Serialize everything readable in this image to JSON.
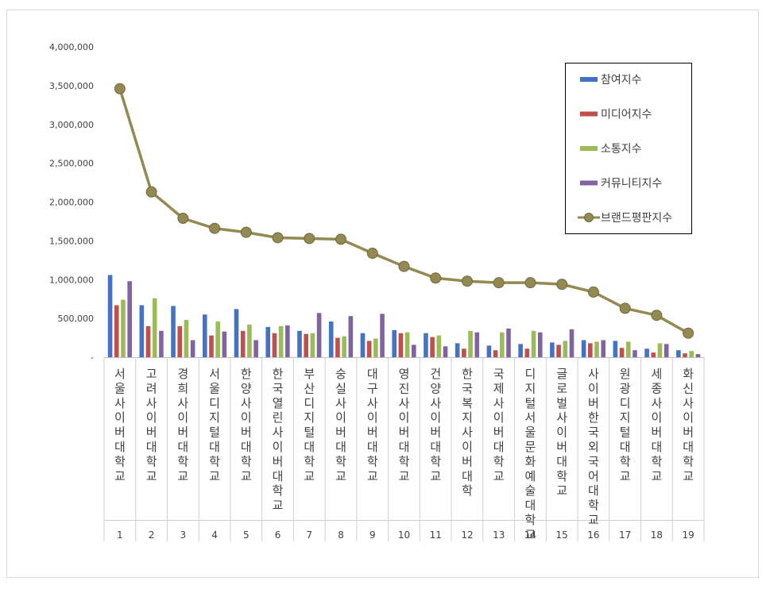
{
  "chart_data": {
    "type": "bar",
    "categories": [
      {
        "name": "서울사이버대학교",
        "rank": "1"
      },
      {
        "name": "고려사이버대학교",
        "rank": "2"
      },
      {
        "name": "경희사이버대학교",
        "rank": "3"
      },
      {
        "name": "서울디지털대학교",
        "rank": "4"
      },
      {
        "name": "한양사이버대학교",
        "rank": "5"
      },
      {
        "name": "한국열린사이버대학교",
        "rank": "6"
      },
      {
        "name": "부산디지털대학교",
        "rank": "7"
      },
      {
        "name": "숭실사이버대학교",
        "rank": "8"
      },
      {
        "name": "대구사이버대학교",
        "rank": "9"
      },
      {
        "name": "영진사이버대학교",
        "rank": "10"
      },
      {
        "name": "건양사이버대학교",
        "rank": "11"
      },
      {
        "name": "한국복지사이버대학",
        "rank": "12"
      },
      {
        "name": "국제사이버대학교",
        "rank": "13"
      },
      {
        "name": "디지털서울문화예술대학교",
        "rank": "14"
      },
      {
        "name": "글로벌사이버대학교",
        "rank": "15"
      },
      {
        "name": "사이버한국외국어대학교",
        "rank": "16"
      },
      {
        "name": "원광디지털대학교",
        "rank": "17"
      },
      {
        "name": "세종사이버대학교",
        "rank": "18"
      },
      {
        "name": "화신사이버대학교",
        "rank": "19"
      }
    ],
    "series": [
      {
        "name": "참여지수",
        "kind": "bar",
        "color": "#4472C4",
        "values": [
          1060000,
          670000,
          660000,
          550000,
          620000,
          390000,
          340000,
          460000,
          310000,
          350000,
          310000,
          180000,
          150000,
          170000,
          190000,
          220000,
          210000,
          110000,
          90000
        ]
      },
      {
        "name": "미디어지수",
        "kind": "bar",
        "color": "#C0504D",
        "values": [
          670000,
          400000,
          400000,
          280000,
          340000,
          310000,
          300000,
          250000,
          210000,
          310000,
          260000,
          110000,
          90000,
          110000,
          160000,
          180000,
          120000,
          60000,
          50000
        ]
      },
      {
        "name": "소통지수",
        "kind": "bar",
        "color": "#9BBB59",
        "values": [
          740000,
          760000,
          480000,
          460000,
          420000,
          400000,
          310000,
          270000,
          240000,
          320000,
          280000,
          340000,
          320000,
          340000,
          210000,
          200000,
          200000,
          180000,
          80000
        ]
      },
      {
        "name": "커뮤니티지수",
        "kind": "bar",
        "color": "#8064A2",
        "values": [
          980000,
          340000,
          220000,
          330000,
          220000,
          410000,
          570000,
          530000,
          560000,
          160000,
          140000,
          320000,
          370000,
          320000,
          360000,
          220000,
          90000,
          170000,
          40000
        ]
      },
      {
        "name": "브랜드평판지수",
        "kind": "line",
        "color": "#938953",
        "values": [
          3460000,
          2130000,
          1790000,
          1660000,
          1610000,
          1540000,
          1530000,
          1520000,
          1340000,
          1170000,
          1020000,
          980000,
          960000,
          960000,
          940000,
          840000,
          630000,
          540000,
          310000
        ]
      }
    ],
    "y_ticks": [
      "-",
      "500,000",
      "1,000,000",
      "1,500,000",
      "2,000,000",
      "2,500,000",
      "3,000,000",
      "3,500,000",
      "4,000,000"
    ],
    "ylim": [
      0,
      4000000
    ],
    "grid": false,
    "legend": "top-right"
  }
}
